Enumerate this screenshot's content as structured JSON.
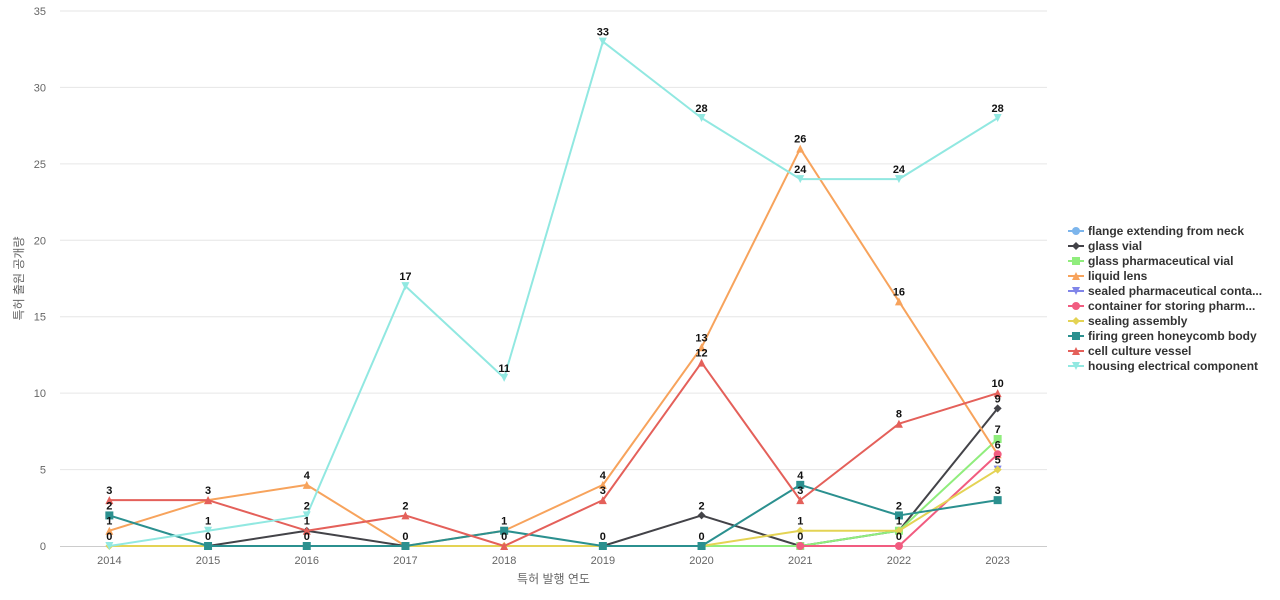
{
  "chart_data": {
    "type": "line",
    "title": "",
    "xlabel": "특허 발행 연도",
    "ylabel": "특허 출원 공개량",
    "x": [
      "2014",
      "2015",
      "2016",
      "2017",
      "2018",
      "2019",
      "2020",
      "2021",
      "2022",
      "2023"
    ],
    "ylim": [
      0,
      35
    ],
    "yticks": [
      0,
      5,
      10,
      15,
      20,
      25,
      30,
      35
    ],
    "grid": true,
    "legend": "right",
    "series": [
      {
        "name": "flange extending from neck",
        "legend_label": "flange extending from neck",
        "color": "#7cb5ec",
        "marker": "circle",
        "values": [
          null,
          null,
          null,
          null,
          null,
          null,
          null,
          null,
          null,
          null
        ]
      },
      {
        "name": "glass vial",
        "legend_label": "glass vial",
        "color": "#434348",
        "marker": "diamond",
        "values": [
          null,
          0,
          1,
          0,
          null,
          0,
          2,
          0,
          1,
          9
        ]
      },
      {
        "name": "glass pharmaceutical vial",
        "legend_label": "glass pharmaceutical vial",
        "color": "#90ed7d",
        "marker": "square",
        "values": [
          null,
          null,
          null,
          null,
          null,
          null,
          0,
          0,
          1,
          7
        ]
      },
      {
        "name": "liquid lens",
        "legend_label": "liquid lens",
        "color": "#f7a35c",
        "marker": "triangle",
        "values": [
          1,
          3,
          4,
          0,
          1,
          4,
          13,
          26,
          16,
          6
        ]
      },
      {
        "name": "sealed pharmaceutical container",
        "legend_label": "sealed pharmaceutical conta...",
        "color": "#8085e9",
        "marker": "triangle-down",
        "values": [
          null,
          null,
          null,
          null,
          null,
          null,
          null,
          null,
          null,
          5
        ]
      },
      {
        "name": "container for storing pharmaceutical",
        "legend_label": "container for storing pharm...",
        "color": "#f15c80",
        "marker": "circle",
        "values": [
          null,
          null,
          null,
          null,
          null,
          null,
          null,
          0,
          0,
          6
        ]
      },
      {
        "name": "sealing assembly",
        "legend_label": "sealing assembly",
        "color": "#e4d354",
        "marker": "diamond",
        "values": [
          0,
          0,
          0,
          0,
          0,
          0,
          0,
          1,
          1,
          5
        ]
      },
      {
        "name": "firing green honeycomb body",
        "legend_label": "firing green honeycomb body",
        "color": "#2b908f",
        "marker": "square",
        "values": [
          2,
          0,
          0,
          0,
          1,
          0,
          0,
          4,
          2,
          3
        ]
      },
      {
        "name": "cell culture vessel",
        "legend_label": "cell culture vessel",
        "color": "#e4605a",
        "marker": "triangle",
        "values": [
          3,
          3,
          1,
          2,
          0,
          3,
          12,
          3,
          8,
          10
        ]
      },
      {
        "name": "housing electrical component",
        "legend_label": "housing electrical component",
        "color": "#91e8e1",
        "marker": "triangle-down",
        "values": [
          0,
          1,
          2,
          17,
          11,
          33,
          28,
          24,
          24,
          28
        ]
      }
    ],
    "data_labels": [
      {
        "x": "2014",
        "text": "3",
        "value": 3
      },
      {
        "x": "2014",
        "text": "2",
        "value": 2
      },
      {
        "x": "2014",
        "text": "1",
        "value": 1
      },
      {
        "x": "2014",
        "text": "0",
        "value": 0
      },
      {
        "x": "2015",
        "text": "3",
        "value": 3
      },
      {
        "x": "2015",
        "text": "1",
        "value": 1
      },
      {
        "x": "2015",
        "text": "0",
        "value": 0
      },
      {
        "x": "2016",
        "text": "4",
        "value": 4
      },
      {
        "x": "2016",
        "text": "2",
        "value": 2
      },
      {
        "x": "2016",
        "text": "1",
        "value": 1
      },
      {
        "x": "2016",
        "text": "0",
        "value": 0
      },
      {
        "x": "2017",
        "text": "17",
        "value": 17
      },
      {
        "x": "2017",
        "text": "2",
        "value": 2
      },
      {
        "x": "2017",
        "text": "0",
        "value": 0
      },
      {
        "x": "2018",
        "text": "11",
        "value": 11
      },
      {
        "x": "2018",
        "text": "1",
        "value": 1
      },
      {
        "x": "2018",
        "text": "0",
        "value": 0
      },
      {
        "x": "2019",
        "text": "33",
        "value": 33
      },
      {
        "x": "2019",
        "text": "4",
        "value": 4
      },
      {
        "x": "2019",
        "text": "3",
        "value": 3
      },
      {
        "x": "2019",
        "text": "0",
        "value": 0
      },
      {
        "x": "2020",
        "text": "28",
        "value": 28
      },
      {
        "x": "2020",
        "text": "13",
        "value": 13
      },
      {
        "x": "2020",
        "text": "12",
        "value": 12
      },
      {
        "x": "2020",
        "text": "2",
        "value": 2
      },
      {
        "x": "2020",
        "text": "0",
        "value": 0
      },
      {
        "x": "2021",
        "text": "26",
        "value": 26
      },
      {
        "x": "2021",
        "text": "24",
        "value": 24
      },
      {
        "x": "2021",
        "text": "4",
        "value": 4
      },
      {
        "x": "2021",
        "text": "3",
        "value": 3
      },
      {
        "x": "2021",
        "text": "1",
        "value": 1
      },
      {
        "x": "2021",
        "text": "0",
        "value": 0
      },
      {
        "x": "2022",
        "text": "24",
        "value": 24
      },
      {
        "x": "2022",
        "text": "16",
        "value": 16
      },
      {
        "x": "2022",
        "text": "8",
        "value": 8
      },
      {
        "x": "2022",
        "text": "2",
        "value": 2
      },
      {
        "x": "2022",
        "text": "1",
        "value": 1
      },
      {
        "x": "2022",
        "text": "0",
        "value": 0
      },
      {
        "x": "2023",
        "text": "28",
        "value": 28
      },
      {
        "x": "2023",
        "text": "10",
        "value": 10
      },
      {
        "x": "2023",
        "text": "9",
        "value": 9
      },
      {
        "x": "2023",
        "text": "7",
        "value": 7
      },
      {
        "x": "2023",
        "text": "6",
        "value": 6
      },
      {
        "x": "2023",
        "text": "5",
        "value": 5
      },
      {
        "x": "2023",
        "text": "3",
        "value": 3
      }
    ]
  }
}
